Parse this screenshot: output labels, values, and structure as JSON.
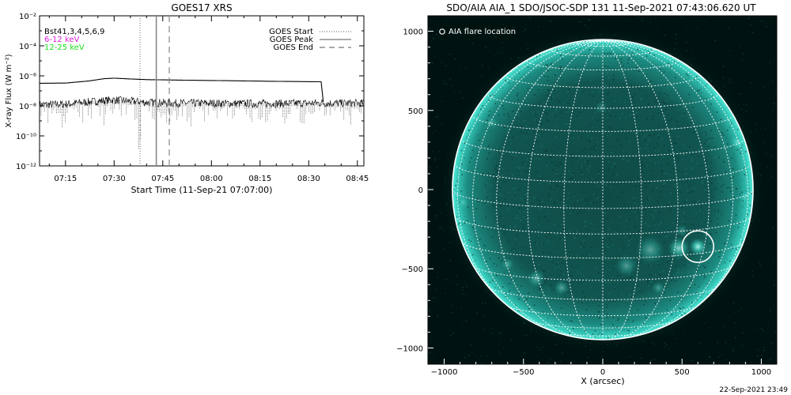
{
  "left_chart": {
    "title": "GOES17 XRS",
    "ylabel": "X-ray Flux (W m⁻²)",
    "xlabel": "Start Time (11-Sep-21 07:07:00)",
    "legend_channels": [
      "Bst41,3,4,5,6,9",
      "6-12 keV",
      "12-25 keV"
    ],
    "legend_lines": [
      "GOES Start",
      "GOES Peak",
      "GOES End"
    ],
    "y_ticks": [
      "10⁻²",
      "10⁻⁴",
      "10⁻⁶",
      "10⁻⁸",
      "10⁻¹⁰",
      "10⁻¹²"
    ],
    "x_ticks": [
      "07:15",
      "07:30",
      "07:45",
      "08:00",
      "08:15",
      "08:30",
      "08:45"
    ]
  },
  "right_chart": {
    "title": "SDO/AIA AIA_1 SDO/JSOC-SDP 131 11-Sep-2021 07:43:06.620 UT",
    "legend": "AIA flare location",
    "xlabel": "X (arcsec)",
    "x_ticks": [
      "−1000",
      "−500",
      "0",
      "500",
      "1000"
    ],
    "y_ticks": [
      "1000",
      "500",
      "0",
      "−500",
      "−1000"
    ]
  },
  "footer_timestamp": "22-Sep-2021 23:49",
  "colors": {
    "magenta": "#e020e0",
    "green": "#20e020",
    "sun_teal": "#2fd6c6"
  },
  "chart_data": [
    {
      "type": "line",
      "title": "GOES17 XRS",
      "xlabel": "Start Time (11-Sep-21 07:07:00)",
      "ylabel": "X-ray Flux (W m⁻²)",
      "x_range": [
        "07:07",
        "08:47"
      ],
      "ylim": [
        1e-12,
        0.01
      ],
      "y_scale": "log",
      "series": [
        {
          "name": "Bst41,3,4,5,6,9",
          "x": [
            "07:07",
            "07:15",
            "07:22",
            "07:27",
            "07:30",
            "07:35",
            "07:40",
            "07:45",
            "07:50",
            "08:00",
            "08:10",
            "08:20",
            "08:30",
            "08:34",
            "08:35",
            "08:47"
          ],
          "values": [
            3.2e-07,
            3.3e-07,
            4.5e-07,
            6.5e-07,
            7e-07,
            6.2e-07,
            5.6e-07,
            5.4e-07,
            5.2e-07,
            4.9e-07,
            4.6e-07,
            4.3e-07,
            4.1e-07,
            4e-07,
            null,
            null
          ]
        },
        {
          "name": "6-12 keV",
          "x": [
            "07:07",
            "07:15",
            "07:25",
            "07:30",
            "07:40",
            "07:50",
            "08:00",
            "08:15",
            "08:30",
            "08:34",
            "08:36",
            "08:47"
          ],
          "values": [
            1.2e-08,
            1.3e-08,
            2.1e-08,
            2.5e-08,
            1.7e-08,
            1.5e-08,
            1.5e-08,
            1.4e-08,
            1.5e-08,
            1.6e-08,
            1.5e-08,
            1.5e-08
          ]
        }
      ],
      "vlines": [
        {
          "label": "GOES Start",
          "x": "07:38",
          "style": "dotted"
        },
        {
          "label": "GOES Peak",
          "x": "07:43",
          "style": "solid"
        },
        {
          "label": "GOES End",
          "x": "07:47",
          "style": "dashed"
        }
      ]
    },
    {
      "type": "heatmap",
      "title": "SDO/AIA AIA_1 SDO/JSOC-SDP 131 11-Sep-2021 07:43:06.620 UT",
      "xlabel": "X (arcsec)",
      "xlim": [
        -1100,
        1100
      ],
      "ylim": [
        -1100,
        1100
      ],
      "solar_radius": 950,
      "flare_location": {
        "x": 600,
        "y": -360
      }
    }
  ]
}
